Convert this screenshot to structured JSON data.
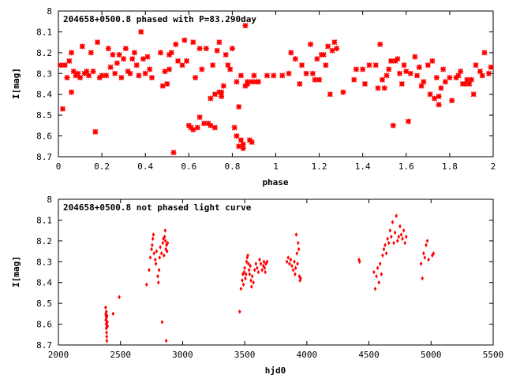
{
  "chart_data": [
    {
      "type": "scatter",
      "title": "204658+0500.8 phased with P=83.290day",
      "xlabel": "phase",
      "ylabel": "I[mag]",
      "xlim": [
        0,
        2
      ],
      "ylim": [
        8,
        8.7
      ],
      "y_inverted": true,
      "grid": false,
      "marker": "star",
      "color": "#ff0000",
      "x_ticks": [
        0,
        0.2,
        0.4,
        0.6,
        0.8,
        1,
        1.2,
        1.4,
        1.6,
        1.8,
        2
      ],
      "x_tick_labels": [
        "0",
        "0.2",
        "0.4",
        "0.6",
        "0.8",
        "1",
        "1.2",
        "1.4",
        "1.6",
        "1.8",
        "2"
      ],
      "y_ticks": [
        8,
        8.1,
        8.2,
        8.3,
        8.4,
        8.5,
        8.6,
        8.7
      ],
      "y_tick_labels": [
        "8",
        "8.1",
        "8.2",
        "8.3",
        "8.4",
        "8.5",
        "8.6",
        "8.7"
      ],
      "points": [
        [
          0.01,
          8.26
        ],
        [
          0.02,
          8.47
        ],
        [
          0.03,
          8.26
        ],
        [
          0.04,
          8.32
        ],
        [
          0.05,
          8.24
        ],
        [
          0.06,
          8.39
        ],
        [
          0.06,
          8.2
        ],
        [
          0.07,
          8.29
        ],
        [
          0.08,
          8.31
        ],
        [
          0.09,
          8.3
        ],
        [
          0.1,
          8.32
        ],
        [
          0.11,
          8.17
        ],
        [
          0.12,
          8.3
        ],
        [
          0.13,
          8.29
        ],
        [
          0.14,
          8.31
        ],
        [
          0.15,
          8.2
        ],
        [
          0.16,
          8.29
        ],
        [
          0.17,
          8.58
        ],
        [
          0.18,
          8.15
        ],
        [
          0.19,
          8.32
        ],
        [
          0.2,
          8.31
        ],
        [
          0.22,
          8.31
        ],
        [
          0.23,
          8.18
        ],
        [
          0.24,
          8.27
        ],
        [
          0.25,
          8.21
        ],
        [
          0.26,
          8.3
        ],
        [
          0.27,
          8.25
        ],
        [
          0.28,
          8.21
        ],
        [
          0.29,
          8.32
        ],
        [
          0.3,
          8.23
        ],
        [
          0.31,
          8.18
        ],
        [
          0.32,
          8.29
        ],
        [
          0.33,
          8.3
        ],
        [
          0.34,
          8.23
        ],
        [
          0.35,
          8.2
        ],
        [
          0.36,
          8.26
        ],
        [
          0.37,
          8.31
        ],
        [
          0.38,
          8.1
        ],
        [
          0.39,
          8.23
        ],
        [
          0.4,
          8.3
        ],
        [
          0.41,
          8.22
        ],
        [
          0.42,
          8.28
        ],
        [
          0.43,
          8.32
        ],
        [
          0.47,
          8.2
        ],
        [
          0.48,
          8.36
        ],
        [
          0.49,
          8.29
        ],
        [
          0.5,
          8.35
        ],
        [
          0.51,
          8.21
        ],
        [
          0.51,
          8.28
        ],
        [
          0.52,
          8.2
        ],
        [
          0.53,
          8.68
        ],
        [
          0.54,
          8.16
        ],
        [
          0.55,
          8.24
        ],
        [
          0.57,
          8.26
        ],
        [
          0.58,
          8.14
        ],
        [
          0.59,
          8.24
        ],
        [
          0.6,
          8.55
        ],
        [
          0.61,
          8.56
        ],
        [
          0.62,
          8.57
        ],
        [
          0.62,
          8.15
        ],
        [
          0.63,
          8.32
        ],
        [
          0.64,
          8.56
        ],
        [
          0.65,
          8.18
        ],
        [
          0.65,
          8.51
        ],
        [
          0.66,
          8.28
        ],
        [
          0.67,
          8.54
        ],
        [
          0.68,
          8.18
        ],
        [
          0.69,
          8.54
        ],
        [
          0.7,
          8.42
        ],
        [
          0.7,
          8.55
        ],
        [
          0.71,
          8.26
        ],
        [
          0.72,
          8.4
        ],
        [
          0.72,
          8.56
        ],
        [
          0.73,
          8.19
        ],
        [
          0.74,
          8.39
        ],
        [
          0.74,
          8.15
        ],
        [
          0.75,
          8.39
        ],
        [
          0.75,
          8.41
        ],
        [
          0.76,
          8.36
        ],
        [
          0.77,
          8.21
        ],
        [
          0.78,
          8.26
        ],
        [
          0.79,
          8.28
        ],
        [
          0.8,
          8.18
        ],
        [
          0.81,
          8.56
        ],
        [
          0.82,
          8.34
        ],
        [
          0.82,
          8.6
        ],
        [
          0.83,
          8.65
        ],
        [
          0.83,
          8.46
        ],
        [
          0.84,
          8.31
        ],
        [
          0.84,
          8.62
        ],
        [
          0.85,
          8.66
        ],
        [
          0.85,
          8.64
        ],
        [
          0.86,
          8.07
        ],
        [
          0.86,
          8.36
        ],
        [
          0.87,
          8.34
        ],
        [
          0.87,
          8.35
        ],
        [
          0.88,
          8.62
        ],
        [
          0.89,
          8.34
        ],
        [
          0.89,
          8.63
        ],
        [
          0.9,
          8.31
        ],
        [
          0.91,
          8.34
        ],
        [
          0.92,
          8.34
        ],
        [
          0.96,
          8.31
        ],
        [
          0.99,
          8.31
        ],
        [
          1.03,
          8.31
        ],
        [
          1.06,
          8.3
        ],
        [
          1.07,
          8.2
        ],
        [
          1.09,
          8.23
        ],
        [
          1.11,
          8.35
        ],
        [
          1.12,
          8.26
        ],
        [
          1.14,
          8.3
        ],
        [
          1.16,
          8.16
        ],
        [
          1.17,
          8.3
        ],
        [
          1.18,
          8.33
        ],
        [
          1.19,
          8.23
        ],
        [
          1.2,
          8.33
        ],
        [
          1.21,
          8.21
        ],
        [
          1.22,
          8.21
        ],
        [
          1.23,
          8.26
        ],
        [
          1.24,
          8.17
        ],
        [
          1.25,
          8.4
        ],
        [
          1.26,
          8.19
        ],
        [
          1.27,
          8.15
        ],
        [
          1.28,
          8.18
        ],
        [
          1.31,
          8.39
        ],
        [
          1.36,
          8.33
        ],
        [
          1.37,
          8.28
        ],
        [
          1.4,
          8.28
        ],
        [
          1.41,
          8.35
        ],
        [
          1.43,
          8.26
        ],
        [
          1.46,
          8.26
        ],
        [
          1.47,
          8.37
        ],
        [
          1.48,
          8.16
        ],
        [
          1.49,
          8.33
        ],
        [
          1.5,
          8.37
        ],
        [
          1.51,
          8.31
        ],
        [
          1.52,
          8.28
        ],
        [
          1.53,
          8.24
        ],
        [
          1.54,
          8.55
        ],
        [
          1.55,
          8.24
        ],
        [
          1.56,
          8.23
        ],
        [
          1.57,
          8.3
        ],
        [
          1.58,
          8.35
        ],
        [
          1.59,
          8.26
        ],
        [
          1.6,
          8.29
        ],
        [
          1.61,
          8.53
        ],
        [
          1.62,
          8.3
        ],
        [
          1.64,
          8.22
        ],
        [
          1.65,
          8.31
        ],
        [
          1.66,
          8.27
        ],
        [
          1.67,
          8.36
        ],
        [
          1.68,
          8.34
        ],
        [
          1.7,
          8.26
        ],
        [
          1.71,
          8.4
        ],
        [
          1.72,
          8.24
        ],
        [
          1.73,
          8.42
        ],
        [
          1.74,
          8.32
        ],
        [
          1.75,
          8.45
        ],
        [
          1.75,
          8.41
        ],
        [
          1.76,
          8.37
        ],
        [
          1.77,
          8.28
        ],
        [
          1.78,
          8.34
        ],
        [
          1.8,
          8.32
        ],
        [
          1.81,
          8.43
        ],
        [
          1.83,
          8.32
        ],
        [
          1.84,
          8.31
        ],
        [
          1.85,
          8.29
        ],
        [
          1.86,
          8.35
        ],
        [
          1.87,
          8.35
        ],
        [
          1.88,
          8.33
        ],
        [
          1.89,
          8.35
        ],
        [
          1.9,
          8.33
        ],
        [
          1.91,
          8.4
        ],
        [
          1.92,
          8.26
        ],
        [
          1.94,
          8.29
        ],
        [
          1.95,
          8.31
        ],
        [
          1.96,
          8.2
        ],
        [
          1.98,
          8.3
        ],
        [
          1.99,
          8.27
        ]
      ]
    },
    {
      "type": "scatter",
      "title": "204658+0500.8 not phased light curve",
      "xlabel": "hjd0",
      "ylabel": "I[mag]",
      "xlim": [
        2000,
        5500
      ],
      "ylim": [
        8,
        8.7
      ],
      "y_inverted": true,
      "grid": false,
      "marker": "diamond",
      "color": "#ff0000",
      "x_ticks": [
        2000,
        2500,
        3000,
        3500,
        4000,
        4500,
        5000,
        5500
      ],
      "x_tick_labels": [
        "2000",
        "2500",
        "3000",
        "3500",
        "4000",
        "4500",
        "5000",
        "5500"
      ],
      "y_ticks": [
        8,
        8.1,
        8.2,
        8.3,
        8.4,
        8.5,
        8.6,
        8.7
      ],
      "y_tick_labels": [
        "8",
        "8.1",
        "8.2",
        "8.3",
        "8.4",
        "8.5",
        "8.6",
        "8.7"
      ],
      "points": [
        [
          2380,
          8.52
        ],
        [
          2381,
          8.55
        ],
        [
          2382,
          8.58
        ],
        [
          2383,
          8.56
        ],
        [
          2384,
          8.6
        ],
        [
          2385,
          8.62
        ],
        [
          2386,
          8.54
        ],
        [
          2387,
          8.57
        ],
        [
          2388,
          8.64
        ],
        [
          2389,
          8.66
        ],
        [
          2390,
          8.68
        ],
        [
          2392,
          8.56
        ],
        [
          2394,
          8.59
        ],
        [
          2396,
          8.61
        ],
        [
          2440,
          8.55
        ],
        [
          2490,
          8.47
        ],
        [
          2710,
          8.41
        ],
        [
          2730,
          8.34
        ],
        [
          2740,
          8.28
        ],
        [
          2750,
          8.24
        ],
        [
          2755,
          8.22
        ],
        [
          2760,
          8.19
        ],
        [
          2765,
          8.17
        ],
        [
          2770,
          8.26
        ],
        [
          2780,
          8.29
        ],
        [
          2785,
          8.31
        ],
        [
          2790,
          8.25
        ],
        [
          2800,
          8.37
        ],
        [
          2805,
          8.4
        ],
        [
          2810,
          8.34
        ],
        [
          2815,
          8.28
        ],
        [
          2820,
          8.23
        ],
        [
          2830,
          8.26
        ],
        [
          2835,
          8.59
        ],
        [
          2840,
          8.21
        ],
        [
          2845,
          8.19
        ],
        [
          2850,
          8.27
        ],
        [
          2855,
          8.18
        ],
        [
          2860,
          8.15
        ],
        [
          2862,
          8.2
        ],
        [
          2865,
          8.24
        ],
        [
          2868,
          8.68
        ],
        [
          2870,
          8.22
        ],
        [
          2875,
          8.25
        ],
        [
          2880,
          8.21
        ],
        [
          3460,
          8.54
        ],
        [
          3470,
          8.43
        ],
        [
          3480,
          8.39
        ],
        [
          3485,
          8.36
        ],
        [
          3490,
          8.41
        ],
        [
          3495,
          8.35
        ],
        [
          3500,
          8.33
        ],
        [
          3505,
          8.38
        ],
        [
          3510,
          8.36
        ],
        [
          3515,
          8.3
        ],
        [
          3520,
          8.28
        ],
        [
          3525,
          8.27
        ],
        [
          3530,
          8.31
        ],
        [
          3535,
          8.34
        ],
        [
          3540,
          8.36
        ],
        [
          3545,
          8.32
        ],
        [
          3550,
          8.39
        ],
        [
          3555,
          8.42
        ],
        [
          3560,
          8.37
        ],
        [
          3570,
          8.4
        ],
        [
          3580,
          8.34
        ],
        [
          3590,
          8.31
        ],
        [
          3600,
          8.33
        ],
        [
          3610,
          8.35
        ],
        [
          3620,
          8.29
        ],
        [
          3630,
          8.31
        ],
        [
          3640,
          8.34
        ],
        [
          3650,
          8.32
        ],
        [
          3655,
          8.3
        ],
        [
          3660,
          8.33
        ],
        [
          3665,
          8.35
        ],
        [
          3670,
          8.31
        ],
        [
          3680,
          8.3
        ],
        [
          3840,
          8.3
        ],
        [
          3850,
          8.28
        ],
        [
          3860,
          8.31
        ],
        [
          3870,
          8.29
        ],
        [
          3880,
          8.32
        ],
        [
          3890,
          8.34
        ],
        [
          3900,
          8.3
        ],
        [
          3905,
          8.36
        ],
        [
          3910,
          8.33
        ],
        [
          3915,
          8.17
        ],
        [
          3920,
          8.26
        ],
        [
          3925,
          8.31
        ],
        [
          3930,
          8.21
        ],
        [
          3935,
          8.24
        ],
        [
          3940,
          8.37
        ],
        [
          3945,
          8.39
        ],
        [
          3950,
          8.38
        ],
        [
          4420,
          8.29
        ],
        [
          4425,
          8.3
        ],
        [
          4540,
          8.35
        ],
        [
          4550,
          8.43
        ],
        [
          4560,
          8.37
        ],
        [
          4570,
          8.33
        ],
        [
          4580,
          8.4
        ],
        [
          4590,
          8.31
        ],
        [
          4600,
          8.36
        ],
        [
          4610,
          8.27
        ],
        [
          4620,
          8.24
        ],
        [
          4630,
          8.22
        ],
        [
          4640,
          8.26
        ],
        [
          4650,
          8.19
        ],
        [
          4660,
          8.21
        ],
        [
          4670,
          8.15
        ],
        [
          4680,
          8.18
        ],
        [
          4690,
          8.11
        ],
        [
          4700,
          8.21
        ],
        [
          4710,
          8.16
        ],
        [
          4720,
          8.08
        ],
        [
          4730,
          8.2
        ],
        [
          4740,
          8.18
        ],
        [
          4750,
          8.13
        ],
        [
          4760,
          8.17
        ],
        [
          4770,
          8.19
        ],
        [
          4780,
          8.15
        ],
        [
          4790,
          8.21
        ],
        [
          4800,
          8.18
        ],
        [
          4920,
          8.31
        ],
        [
          4930,
          8.38
        ],
        [
          4940,
          8.26
        ],
        [
          4950,
          8.28
        ],
        [
          4960,
          8.22
        ],
        [
          4970,
          8.2
        ],
        [
          4980,
          8.29
        ],
        [
          5010,
          8.27
        ],
        [
          5020,
          8.26
        ]
      ]
    }
  ]
}
